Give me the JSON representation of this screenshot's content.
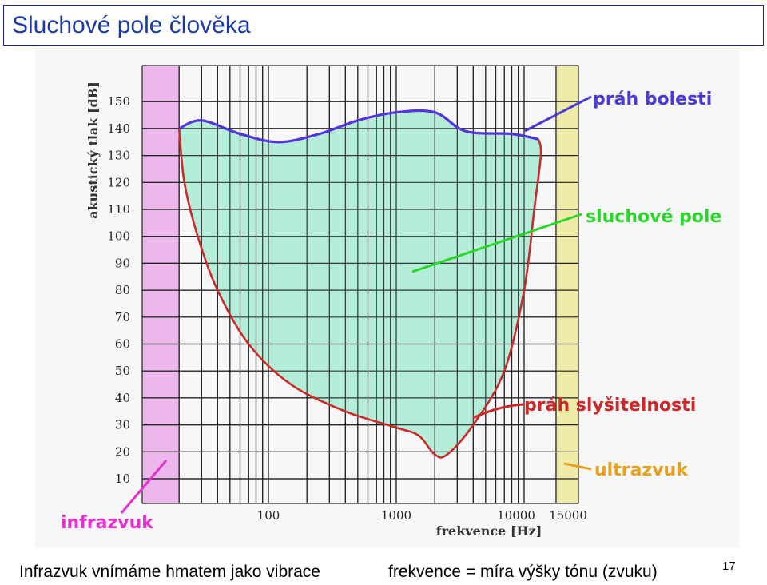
{
  "slide": {
    "title": "Sluchové pole člověka",
    "footer_left": "Infrazvuk vnímáme hmatem jako vibrace",
    "footer_right": "frekvence = míra výšky tónu (zvuku)",
    "page_number": "17"
  },
  "chart_data": {
    "type": "area",
    "xlabel": "frekvence [Hz]",
    "ylabel": "akustický tlak [dB]",
    "x_scale": "log",
    "x_tick_labels": [
      "100",
      "1000",
      "10000",
      "15000"
    ],
    "y_tick_labels": [
      "10",
      "20",
      "30",
      "40",
      "50",
      "60",
      "70",
      "80",
      "90",
      "100",
      "110",
      "120",
      "130",
      "140",
      "150"
    ],
    "ylim": [
      0,
      155
    ],
    "grid": true,
    "annotations": {
      "pain": "práh bolesti",
      "field": "sluchové pole",
      "threshold": "práh slyšitelnosti",
      "ultra": "ultrazvuk",
      "infra": "infrazvuk"
    },
    "series": [
      {
        "name": "práh bolesti",
        "color": "#5533dd",
        "points": [
          [
            20,
            140
          ],
          [
            30,
            143
          ],
          [
            60,
            138
          ],
          [
            120,
            135
          ],
          [
            250,
            138
          ],
          [
            500,
            143
          ],
          [
            1000,
            146
          ],
          [
            2000,
            146
          ],
          [
            3500,
            139
          ],
          [
            8000,
            138
          ],
          [
            13000,
            136
          ]
        ]
      },
      {
        "name": "práh slyšitelnosti",
        "color": "#cc2a2a",
        "points": [
          [
            20,
            140
          ],
          [
            22,
            120
          ],
          [
            28,
            100
          ],
          [
            40,
            80
          ],
          [
            70,
            60
          ],
          [
            150,
            45
          ],
          [
            400,
            35
          ],
          [
            1000,
            29
          ],
          [
            1500,
            26
          ],
          [
            2000,
            19
          ],
          [
            2500,
            19
          ],
          [
            4000,
            30
          ],
          [
            7000,
            50
          ],
          [
            10000,
            80
          ],
          [
            12000,
            110
          ],
          [
            13500,
            130
          ],
          [
            13000,
            136
          ]
        ]
      }
    ],
    "colors": {
      "area_fill": "#a8ecd4",
      "infra_band": "#ecb8ec",
      "ultra_band": "#eeeaa8",
      "label_pain": "#4a3ad6",
      "label_field": "#2ad62a",
      "label_threshold": "#cc2a2a",
      "label_ultra": "#e8a020",
      "label_infra": "#e830d0"
    }
  }
}
